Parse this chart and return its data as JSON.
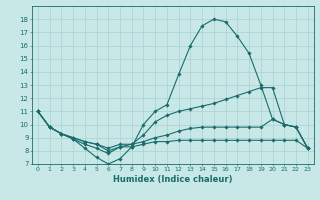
{
  "title": "",
  "xlabel": "Humidex (Indice chaleur)",
  "bg_color": "#c8e8e8",
  "grid_color": "#aad0d0",
  "line_color": "#1a6b6b",
  "xlim": [
    -0.5,
    23.5
  ],
  "ylim": [
    7,
    19
  ],
  "yticks": [
    7,
    8,
    9,
    10,
    11,
    12,
    13,
    14,
    15,
    16,
    17,
    18
  ],
  "xticks": [
    0,
    1,
    2,
    3,
    4,
    5,
    6,
    7,
    8,
    9,
    10,
    11,
    12,
    13,
    14,
    15,
    16,
    17,
    18,
    19,
    20,
    21,
    22,
    23
  ],
  "line1_x": [
    0,
    1,
    2,
    3,
    4,
    5,
    6,
    7,
    8,
    9,
    10,
    11,
    12,
    13,
    14,
    15,
    16,
    17,
    18,
    19,
    20,
    21,
    22,
    23
  ],
  "line1_y": [
    11.0,
    9.8,
    9.3,
    8.9,
    8.2,
    7.5,
    7.0,
    7.4,
    8.3,
    10.0,
    11.0,
    11.5,
    13.8,
    16.0,
    17.5,
    18.0,
    17.8,
    16.7,
    15.4,
    13.0,
    10.4,
    10.0,
    9.8,
    8.2
  ],
  "line2_x": [
    0,
    1,
    2,
    3,
    4,
    5,
    6,
    7,
    8,
    9,
    10,
    11,
    12,
    13,
    14,
    15,
    16,
    17,
    18,
    19,
    20,
    21,
    22,
    23
  ],
  "line2_y": [
    11.0,
    9.8,
    9.3,
    8.9,
    8.5,
    8.2,
    7.8,
    8.3,
    8.5,
    9.2,
    10.2,
    10.7,
    11.0,
    11.2,
    11.4,
    11.6,
    11.9,
    12.2,
    12.5,
    12.8,
    12.8,
    10.0,
    9.8,
    8.2
  ],
  "line3_x": [
    0,
    1,
    2,
    3,
    4,
    5,
    6,
    7,
    8,
    9,
    10,
    11,
    12,
    13,
    14,
    15,
    16,
    17,
    18,
    19,
    20,
    21,
    22,
    23
  ],
  "line3_y": [
    11.0,
    9.8,
    9.3,
    9.0,
    8.7,
    8.5,
    8.2,
    8.5,
    8.5,
    8.7,
    9.0,
    9.2,
    9.5,
    9.7,
    9.8,
    9.8,
    9.8,
    9.8,
    9.8,
    9.8,
    10.4,
    10.0,
    9.8,
    8.2
  ],
  "line4_x": [
    0,
    1,
    2,
    3,
    4,
    5,
    6,
    7,
    8,
    9,
    10,
    11,
    12,
    13,
    14,
    15,
    16,
    17,
    18,
    19,
    20,
    21,
    22,
    23
  ],
  "line4_y": [
    11.0,
    9.8,
    9.3,
    9.0,
    8.7,
    8.5,
    8.0,
    8.3,
    8.3,
    8.5,
    8.7,
    8.7,
    8.8,
    8.8,
    8.8,
    8.8,
    8.8,
    8.8,
    8.8,
    8.8,
    8.8,
    8.8,
    8.8,
    8.2
  ]
}
